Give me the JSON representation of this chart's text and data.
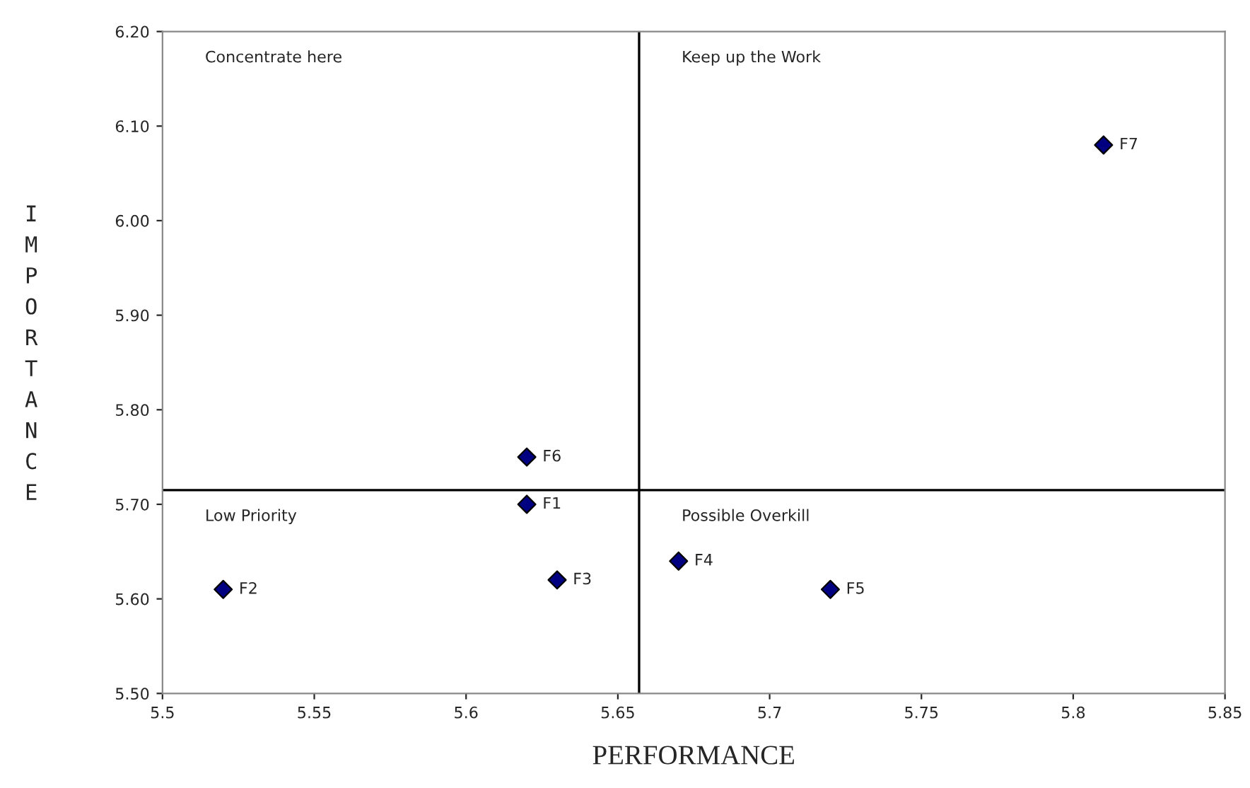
{
  "chart_data": {
    "type": "scatter",
    "xlabel": "PERFORMANCE",
    "ylabel": "IMPORTANCE",
    "x": [
      5.62,
      5.52,
      5.63,
      5.67,
      5.72,
      5.62,
      5.81
    ],
    "values": [
      5.7,
      5.61,
      5.62,
      5.64,
      5.61,
      5.75,
      6.08
    ],
    "color": "#000080",
    "marker": "diamond",
    "grid": false,
    "legend": false,
    "xlim": [
      5.5,
      5.85
    ],
    "xticks": [
      5.5,
      5.55,
      5.6,
      5.65,
      5.7,
      5.75,
      5.8,
      5.85
    ],
    "ylim": [
      5.5,
      6.2
    ],
    "yticks": [
      {
        "value": 5.5,
        "label": "5.50"
      },
      {
        "value": 5.6,
        "label": "5.60"
      },
      {
        "value": 5.7,
        "label": "5.70"
      },
      {
        "value": 5.8,
        "label": "5.80"
      },
      {
        "value": 5.9,
        "label": "5.90"
      },
      {
        "value": 6.0,
        "label": "6.00"
      },
      {
        "value": 6.1,
        "label": "6.10"
      },
      {
        "value": 6.2,
        "label": "6.20"
      }
    ],
    "ref_lines": [
      {
        "axis": "x",
        "value": 5.657,
        "color": "#000000"
      },
      {
        "axis": "y",
        "value": 5.715,
        "color": "#000000"
      }
    ],
    "annotations": [
      "Concentrate here",
      "Keep up the Work",
      "Low Priority",
      "Possible Overkill",
      {
        "text": "F1",
        "x": 5.62,
        "y": 5.7
      },
      {
        "text": "F2",
        "x": 5.52,
        "y": 5.61
      },
      {
        "text": "F3",
        "x": 5.63,
        "y": 5.62
      },
      {
        "text": "F4",
        "x": 5.67,
        "y": 5.64
      },
      {
        "text": "F5",
        "x": 5.72,
        "y": 5.61
      },
      {
        "text": "F6",
        "x": 5.62,
        "y": 5.75
      },
      {
        "text": "F7",
        "x": 5.81,
        "y": 6.08
      }
    ]
  }
}
